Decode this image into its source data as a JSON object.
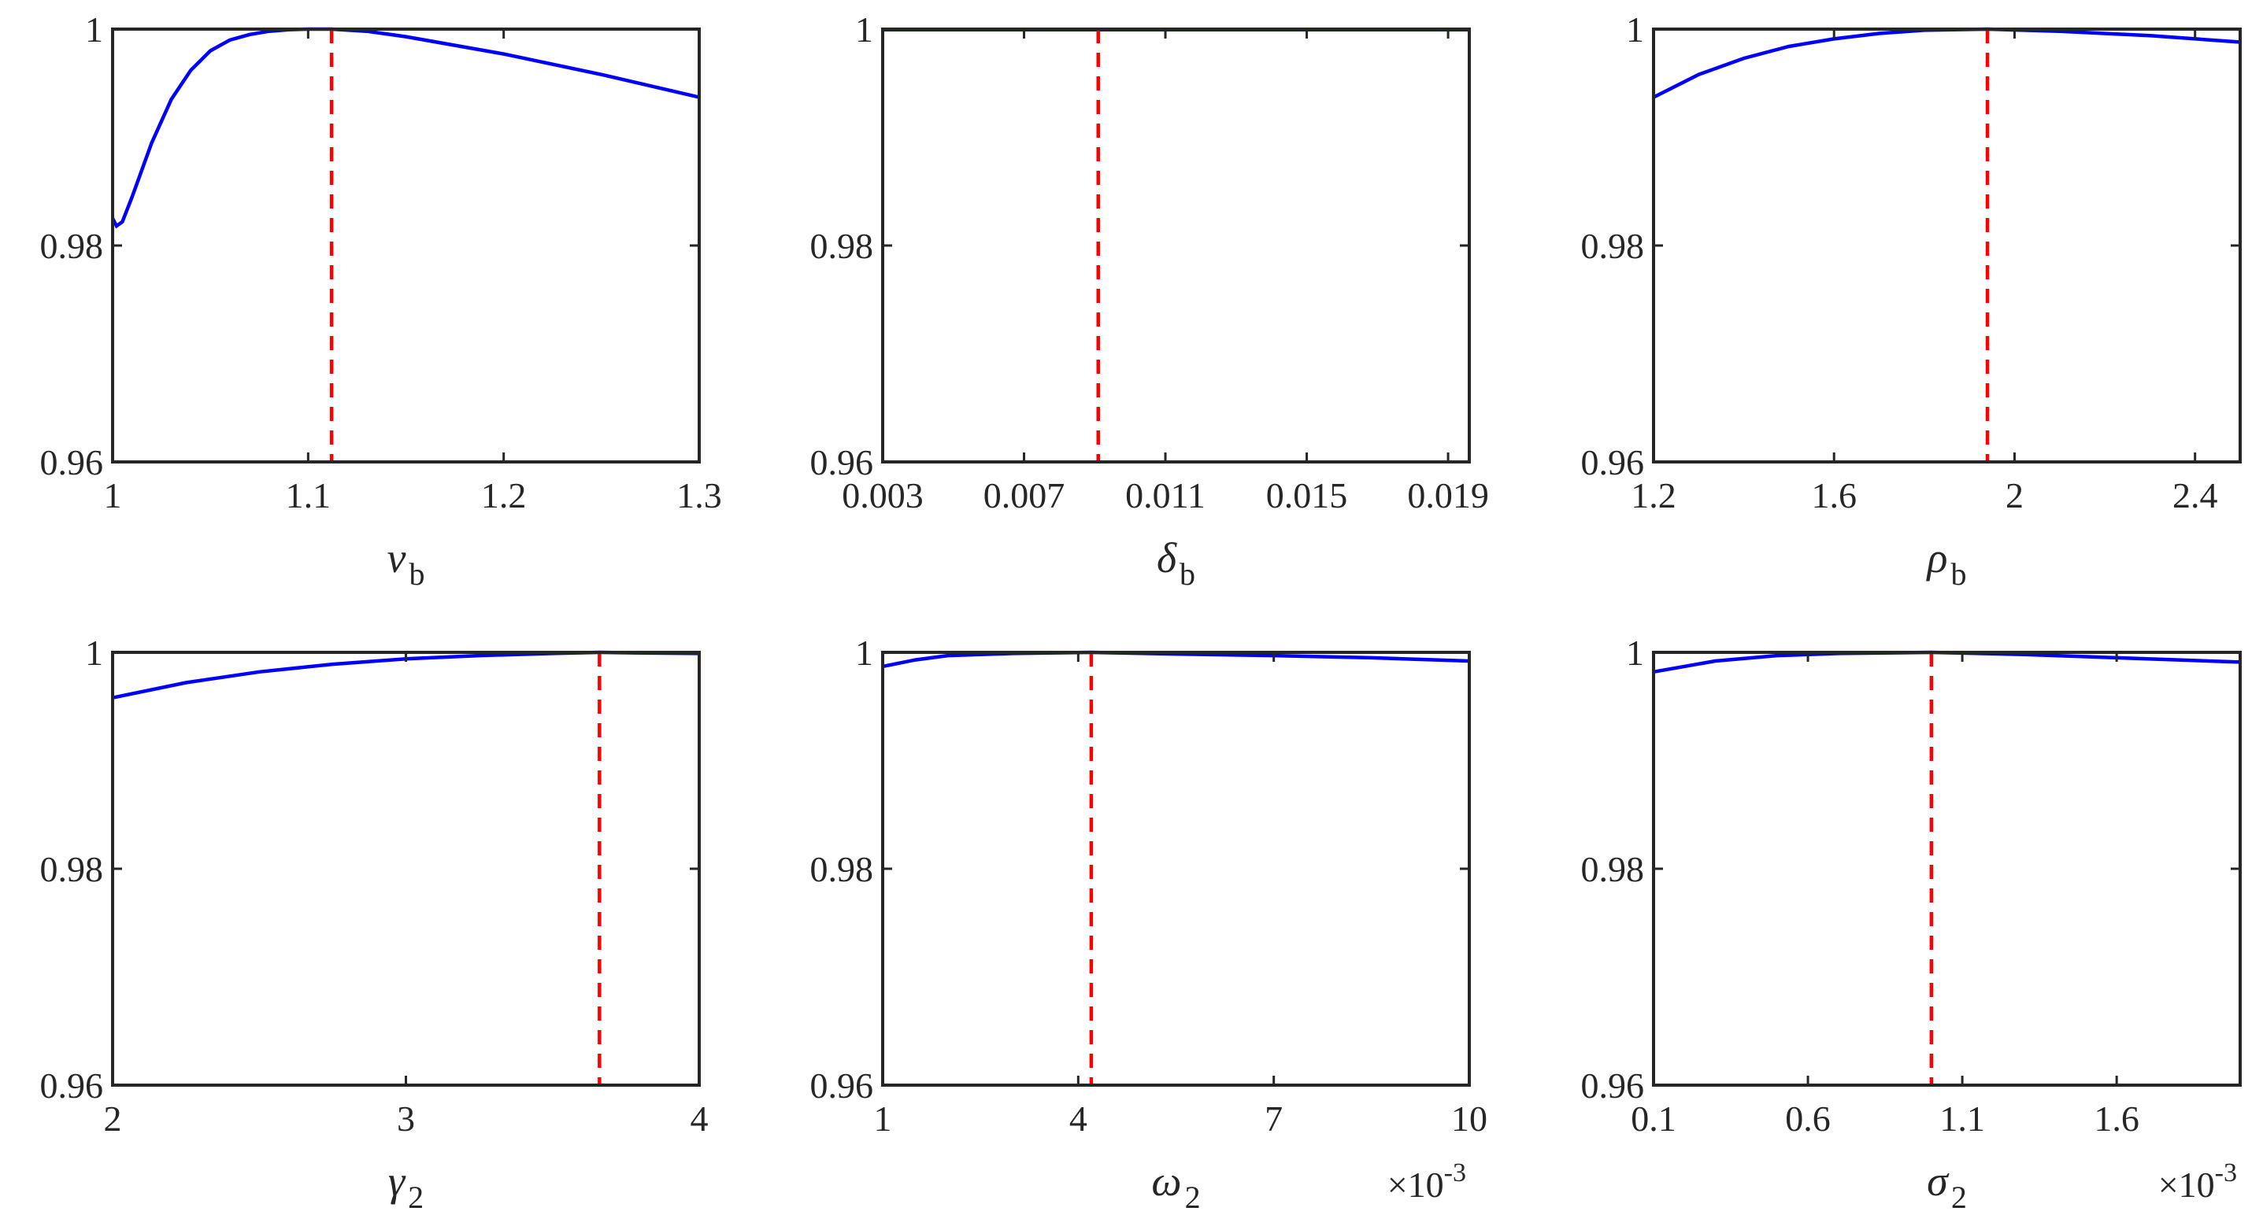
{
  "colors": {
    "curve": "#0000ff",
    "marker": "#ff0000",
    "axes": "#262626",
    "background": "#ffffff"
  },
  "chart_data": [
    {
      "type": "line",
      "xlabel": "v",
      "xlabel_sub": "b",
      "xlim": [
        1,
        1.3
      ],
      "ylim": [
        0.96,
        1.0
      ],
      "xticks": [
        1,
        1.1,
        1.2,
        1.3
      ],
      "xtick_labels": [
        "1",
        "1.1",
        "1.2",
        "1.3"
      ],
      "yticks": [
        0.96,
        0.98,
        1.0
      ],
      "ytick_labels": [
        "0.96",
        "0.98",
        "1"
      ],
      "x_multiplier": "",
      "marker_x": 1.112,
      "series": [
        {
          "x": [
            1.0,
            1.002,
            1.005,
            1.01,
            1.02,
            1.03,
            1.04,
            1.05,
            1.06,
            1.07,
            1.08,
            1.09,
            1.1,
            1.112,
            1.13,
            1.15,
            1.2,
            1.25,
            1.3
          ],
          "y": [
            0.9825,
            0.9818,
            0.9822,
            0.9845,
            0.9895,
            0.9935,
            0.9962,
            0.998,
            0.999,
            0.9995,
            0.9998,
            0.99995,
            1.0,
            1.0,
            0.9998,
            0.9993,
            0.9977,
            0.9958,
            0.9937
          ]
        }
      ]
    },
    {
      "type": "line",
      "xlabel": "δ",
      "xlabel_sub": "b",
      "xlim": [
        0.003,
        0.0196
      ],
      "ylim": [
        0.96,
        1.0
      ],
      "xticks": [
        0.003,
        0.007,
        0.011,
        0.015,
        0.019
      ],
      "xtick_labels": [
        "0.003",
        "0.007",
        "0.011",
        "0.015",
        "0.019"
      ],
      "yticks": [
        0.96,
        0.98,
        1.0
      ],
      "ytick_labels": [
        "0.96",
        "0.98",
        "1"
      ],
      "x_multiplier": "",
      "marker_x": 0.0091,
      "series": [
        {
          "x": [
            0.003,
            0.0196
          ],
          "y": [
            0.99995,
            0.99995
          ]
        }
      ]
    },
    {
      "type": "line",
      "xlabel": "ρ",
      "xlabel_sub": "b",
      "xlim": [
        1.2,
        2.5
      ],
      "ylim": [
        0.96,
        1.0
      ],
      "xticks": [
        1.2,
        1.6,
        2.0,
        2.4
      ],
      "xtick_labels": [
        "1.2",
        "1.6",
        "2",
        "2.4"
      ],
      "yticks": [
        0.96,
        0.98,
        1.0
      ],
      "ytick_labels": [
        "0.96",
        "0.98",
        "1"
      ],
      "x_multiplier": "",
      "marker_x": 1.94,
      "series": [
        {
          "x": [
            1.2,
            1.3,
            1.4,
            1.5,
            1.6,
            1.7,
            1.8,
            1.94,
            2.1,
            2.3,
            2.5
          ],
          "y": [
            0.9937,
            0.9958,
            0.9973,
            0.9984,
            0.9991,
            0.9996,
            0.9999,
            1.0,
            0.9998,
            0.9994,
            0.9988
          ]
        }
      ]
    },
    {
      "type": "line",
      "xlabel": "γ",
      "xlabel_sub": "2",
      "xlim": [
        2,
        4
      ],
      "ylim": [
        0.96,
        1.0
      ],
      "xticks": [
        2,
        3,
        4
      ],
      "xtick_labels": [
        "2",
        "3",
        "4"
      ],
      "yticks": [
        0.96,
        0.98,
        1.0
      ],
      "ytick_labels": [
        "0.96",
        "0.98",
        "1"
      ],
      "x_multiplier": "",
      "marker_x": 3.66,
      "series": [
        {
          "x": [
            2.0,
            2.25,
            2.5,
            2.75,
            3.0,
            3.25,
            3.5,
            3.66,
            3.8,
            4.0
          ],
          "y": [
            0.9958,
            0.9972,
            0.9982,
            0.9989,
            0.9994,
            0.9997,
            0.9999,
            1.0,
            0.99995,
            0.9999
          ]
        }
      ]
    },
    {
      "type": "line",
      "xlabel": "ω",
      "xlabel_sub": "2",
      "xlim": [
        1,
        10
      ],
      "ylim": [
        0.96,
        1.0
      ],
      "xticks": [
        1,
        4,
        7,
        10
      ],
      "xtick_labels": [
        "1",
        "4",
        "7",
        "10"
      ],
      "yticks": [
        0.96,
        0.98,
        1.0
      ],
      "ytick_labels": [
        "0.96",
        "0.98",
        "1"
      ],
      "x_multiplier": "×10⁻³",
      "x_multiplier_base": "×10",
      "x_multiplier_exp": "-3",
      "marker_x": 4.2,
      "series": [
        {
          "x": [
            1.0,
            1.5,
            2.0,
            3.0,
            4.2,
            5.5,
            7.0,
            8.5,
            10.0
          ],
          "y": [
            0.9987,
            0.9993,
            0.9997,
            0.9999,
            1.0,
            0.99985,
            0.9997,
            0.9995,
            0.9992
          ]
        }
      ]
    },
    {
      "type": "line",
      "xlabel": "σ",
      "xlabel_sub": "2",
      "xlim": [
        0.1,
        2.0
      ],
      "ylim": [
        0.96,
        1.0
      ],
      "xticks": [
        0.1,
        0.6,
        1.1,
        1.6
      ],
      "xtick_labels": [
        "0.1",
        "0.6",
        "1.1",
        "1.6"
      ],
      "yticks": [
        0.96,
        0.98,
        1.0
      ],
      "ytick_labels": [
        "0.96",
        "0.98",
        "1"
      ],
      "x_multiplier": "×10⁻³",
      "x_multiplier_base": "×10",
      "x_multiplier_exp": "-3",
      "marker_x": 1.0,
      "series": [
        {
          "x": [
            0.1,
            0.3,
            0.5,
            0.7,
            1.0,
            1.3,
            1.6,
            2.0
          ],
          "y": [
            0.9982,
            0.9992,
            0.9997,
            0.9999,
            1.0,
            0.9998,
            0.9995,
            0.9991
          ]
        }
      ]
    }
  ]
}
